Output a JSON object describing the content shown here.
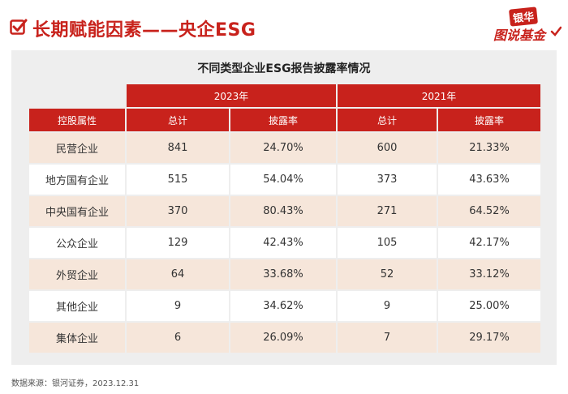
{
  "header": {
    "title": "长期赋能因素——央企ESG",
    "logo_top": "银华",
    "logo_bottom": "图说基金"
  },
  "table": {
    "title": "不同类型企业ESG报告披露率情况",
    "years": [
      "2023年",
      "2021年"
    ],
    "columns": [
      "控股属性",
      "总计",
      "披露率",
      "总计",
      "披露率"
    ],
    "rows": [
      [
        "民营企业",
        "841",
        "24.70%",
        "600",
        "21.33%"
      ],
      [
        "地方国有企业",
        "515",
        "54.04%",
        "373",
        "43.63%"
      ],
      [
        "中央国有企业",
        "370",
        "80.43%",
        "271",
        "64.52%"
      ],
      [
        "公众企业",
        "129",
        "42.43%",
        "105",
        "42.17%"
      ],
      [
        "外贸企业",
        "64",
        "33.68%",
        "52",
        "33.12%"
      ],
      [
        "其他企业",
        "9",
        "34.62%",
        "9",
        "25.00%"
      ],
      [
        "集体企业",
        "6",
        "26.09%",
        "7",
        "29.17%"
      ]
    ]
  },
  "footer": {
    "source": "数据来源：银河证券，2023.12.31"
  },
  "colors": {
    "accent": "#c8221c",
    "row_shade": "#f6e6da",
    "panel": "#eeeeee"
  }
}
